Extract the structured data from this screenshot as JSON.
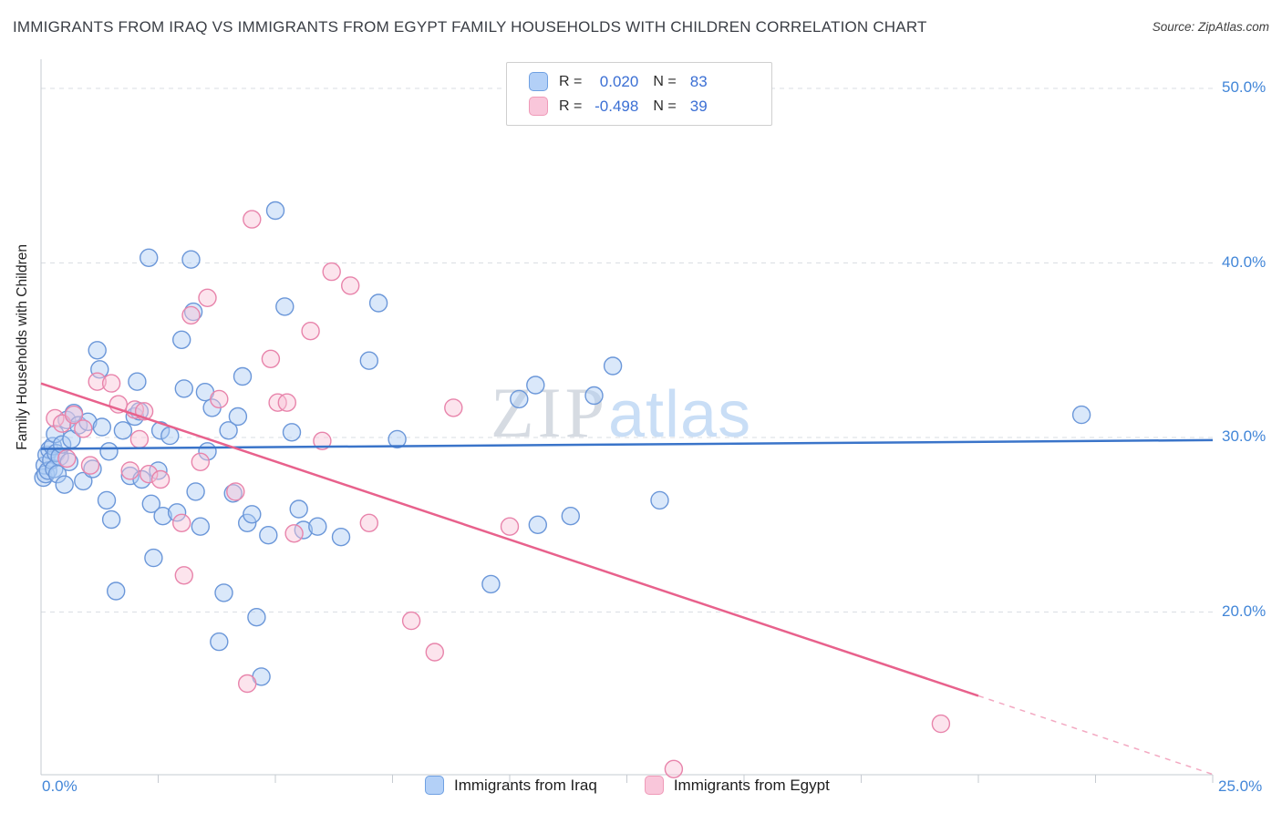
{
  "header": {
    "title": "IMMIGRANTS FROM IRAQ VS IMMIGRANTS FROM EGYPT FAMILY HOUSEHOLDS WITH CHILDREN CORRELATION CHART",
    "source": "Source: ZipAtlas.com"
  },
  "watermark": {
    "zip": "ZIP",
    "atlas": "atlas"
  },
  "axes": {
    "y_label": "Family Households with Children",
    "x_min_label": "0.0%",
    "x_max_label": "25.0%",
    "y_tick_labels": [
      "50.0%",
      "40.0%",
      "30.0%",
      "20.0%"
    ]
  },
  "legend": {
    "r_label": "R =",
    "n_label": "N =",
    "iraq": {
      "r": "0.020",
      "n": "83"
    },
    "egypt": {
      "r": "-0.498",
      "n": "39"
    }
  },
  "series_labels": {
    "iraq": "Immigrants from Iraq",
    "egypt": "Immigrants from Egypt"
  },
  "colors": {
    "tick_label_blue": "#4286d8",
    "value_blue": "#3b6fd4",
    "iraq_fill": "#aecdf5",
    "iraq_stroke": "#6b97d9",
    "egypt_fill": "#f8c3d8",
    "egypt_stroke": "#e884ab",
    "iraq_trend": "#3a74c9",
    "egypt_trend": "#e8618c"
  },
  "chart_data": {
    "type": "scatter",
    "title": "IMMIGRANTS FROM IRAQ VS IMMIGRANTS FROM EGYPT FAMILY HOUSEHOLDS WITH CHILDREN CORRELATION CHART",
    "xlabel": "",
    "ylabel": "Family Households with Children",
    "xlim": [
      0,
      25
    ],
    "ylim": [
      10.5,
      51.5
    ],
    "x_ticks_pct": [
      2.5,
      5,
      7.5,
      10,
      12.5,
      15,
      17.5,
      20,
      22.5,
      25
    ],
    "y_gridlines_pct": [
      50,
      40,
      30,
      20
    ],
    "legend_position": "bottom",
    "grid": true,
    "series": [
      {
        "id": "iraq",
        "name": "Immigrants from Iraq",
        "R": 0.02,
        "N": 83,
        "color": "#6b97d9",
        "fill": "#aecdf5",
        "points": [
          [
            0.05,
            27.7
          ],
          [
            0.08,
            28.4
          ],
          [
            0.1,
            27.9
          ],
          [
            0.12,
            29.0
          ],
          [
            0.15,
            28.1
          ],
          [
            0.18,
            29.3
          ],
          [
            0.22,
            28.7
          ],
          [
            0.25,
            29.5
          ],
          [
            0.28,
            28.2
          ],
          [
            0.3,
            30.2
          ],
          [
            0.32,
            29.1
          ],
          [
            0.35,
            27.9
          ],
          [
            0.4,
            28.9
          ],
          [
            0.45,
            29.6
          ],
          [
            0.5,
            27.3
          ],
          [
            0.55,
            31.0
          ],
          [
            0.6,
            28.6
          ],
          [
            0.65,
            29.9
          ],
          [
            0.7,
            31.4
          ],
          [
            0.8,
            30.7
          ],
          [
            0.9,
            27.5
          ],
          [
            1.0,
            30.9
          ],
          [
            1.1,
            28.2
          ],
          [
            1.2,
            35.0
          ],
          [
            1.25,
            33.9
          ],
          [
            1.3,
            30.6
          ],
          [
            1.4,
            26.4
          ],
          [
            1.45,
            29.2
          ],
          [
            1.5,
            25.3
          ],
          [
            1.6,
            21.2
          ],
          [
            1.75,
            30.4
          ],
          [
            1.9,
            27.8
          ],
          [
            2.0,
            31.2
          ],
          [
            2.05,
            33.2
          ],
          [
            2.1,
            31.5
          ],
          [
            2.15,
            27.6
          ],
          [
            2.3,
            40.3
          ],
          [
            2.35,
            26.2
          ],
          [
            2.4,
            23.1
          ],
          [
            2.5,
            28.1
          ],
          [
            2.55,
            30.4
          ],
          [
            2.6,
            25.5
          ],
          [
            2.75,
            30.1
          ],
          [
            2.9,
            25.7
          ],
          [
            3.0,
            35.6
          ],
          [
            3.05,
            32.8
          ],
          [
            3.2,
            40.2
          ],
          [
            3.25,
            37.2
          ],
          [
            3.3,
            26.9
          ],
          [
            3.4,
            24.9
          ],
          [
            3.5,
            32.6
          ],
          [
            3.55,
            29.2
          ],
          [
            3.65,
            31.7
          ],
          [
            3.8,
            18.3
          ],
          [
            3.9,
            21.1
          ],
          [
            4.0,
            30.4
          ],
          [
            4.1,
            26.8
          ],
          [
            4.2,
            31.2
          ],
          [
            4.3,
            33.5
          ],
          [
            4.4,
            25.1
          ],
          [
            4.5,
            25.6
          ],
          [
            4.6,
            19.7
          ],
          [
            4.7,
            16.3
          ],
          [
            4.85,
            24.4
          ],
          [
            5.0,
            43.0
          ],
          [
            5.2,
            37.5
          ],
          [
            5.35,
            30.3
          ],
          [
            5.5,
            25.9
          ],
          [
            5.6,
            24.7
          ],
          [
            5.9,
            24.9
          ],
          [
            6.4,
            24.3
          ],
          [
            7.0,
            34.4
          ],
          [
            7.2,
            37.7
          ],
          [
            7.6,
            29.9
          ],
          [
            9.6,
            21.6
          ],
          [
            10.2,
            32.2
          ],
          [
            10.55,
            33.0
          ],
          [
            10.6,
            25.0
          ],
          [
            11.3,
            25.5
          ],
          [
            11.8,
            32.4
          ],
          [
            12.2,
            34.1
          ],
          [
            13.2,
            26.4
          ],
          [
            22.2,
            31.3
          ]
        ]
      },
      {
        "id": "egypt",
        "name": "Immigrants from Egypt",
        "R": -0.498,
        "N": 39,
        "color": "#e884ab",
        "fill": "#f8c3d8",
        "points": [
          [
            0.3,
            31.1
          ],
          [
            0.45,
            30.8
          ],
          [
            0.55,
            28.8
          ],
          [
            0.7,
            31.3
          ],
          [
            0.9,
            30.5
          ],
          [
            1.05,
            28.4
          ],
          [
            1.2,
            33.2
          ],
          [
            1.5,
            33.1
          ],
          [
            1.65,
            31.9
          ],
          [
            1.9,
            28.1
          ],
          [
            2.0,
            31.6
          ],
          [
            2.1,
            29.9
          ],
          [
            2.2,
            31.5
          ],
          [
            2.3,
            27.9
          ],
          [
            2.55,
            27.6
          ],
          [
            3.0,
            25.1
          ],
          [
            3.05,
            22.1
          ],
          [
            3.2,
            37.0
          ],
          [
            3.4,
            28.6
          ],
          [
            3.55,
            38.0
          ],
          [
            3.8,
            32.2
          ],
          [
            4.15,
            26.9
          ],
          [
            4.4,
            15.9
          ],
          [
            4.5,
            42.5
          ],
          [
            4.9,
            34.5
          ],
          [
            5.05,
            32.0
          ],
          [
            5.25,
            32.0
          ],
          [
            5.4,
            24.5
          ],
          [
            5.75,
            36.1
          ],
          [
            6.0,
            29.8
          ],
          [
            6.2,
            39.5
          ],
          [
            6.6,
            38.7
          ],
          [
            7.0,
            25.1
          ],
          [
            7.9,
            19.5
          ],
          [
            8.4,
            17.7
          ],
          [
            8.8,
            31.7
          ],
          [
            10.0,
            24.9
          ],
          [
            13.5,
            11.0
          ],
          [
            19.2,
            13.6
          ]
        ]
      }
    ],
    "trend_lines": [
      {
        "id": "trend-line-iraq",
        "series": "Immigrants from Iraq",
        "color": "#3a74c9",
        "width": 2.5,
        "style": "solid",
        "start": [
          0,
          29.35
        ],
        "end": [
          25,
          29.85
        ]
      },
      {
        "id": "trend-line-egypt",
        "series": "Immigrants from Egypt",
        "color": "#e8618c",
        "width": 2.5,
        "style": "solid",
        "start": [
          0,
          33.1
        ],
        "end": [
          20,
          15.2
        ]
      },
      {
        "id": "trend-line-egypt-extension",
        "series": "Immigrants from Egypt",
        "color": "#f3a9c2",
        "width": 1.5,
        "style": "dashed",
        "start": [
          20,
          15.2
        ],
        "end": [
          25,
          10.7
        ]
      }
    ]
  }
}
